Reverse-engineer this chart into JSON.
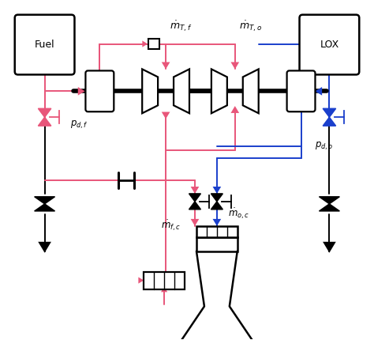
{
  "bg_color": "#ffffff",
  "bk": "#000000",
  "pk": "#e8567a",
  "bl": "#1a3fcc",
  "lw_main": 1.4,
  "fig_w": 4.74,
  "fig_h": 4.3,
  "dpi": 100
}
